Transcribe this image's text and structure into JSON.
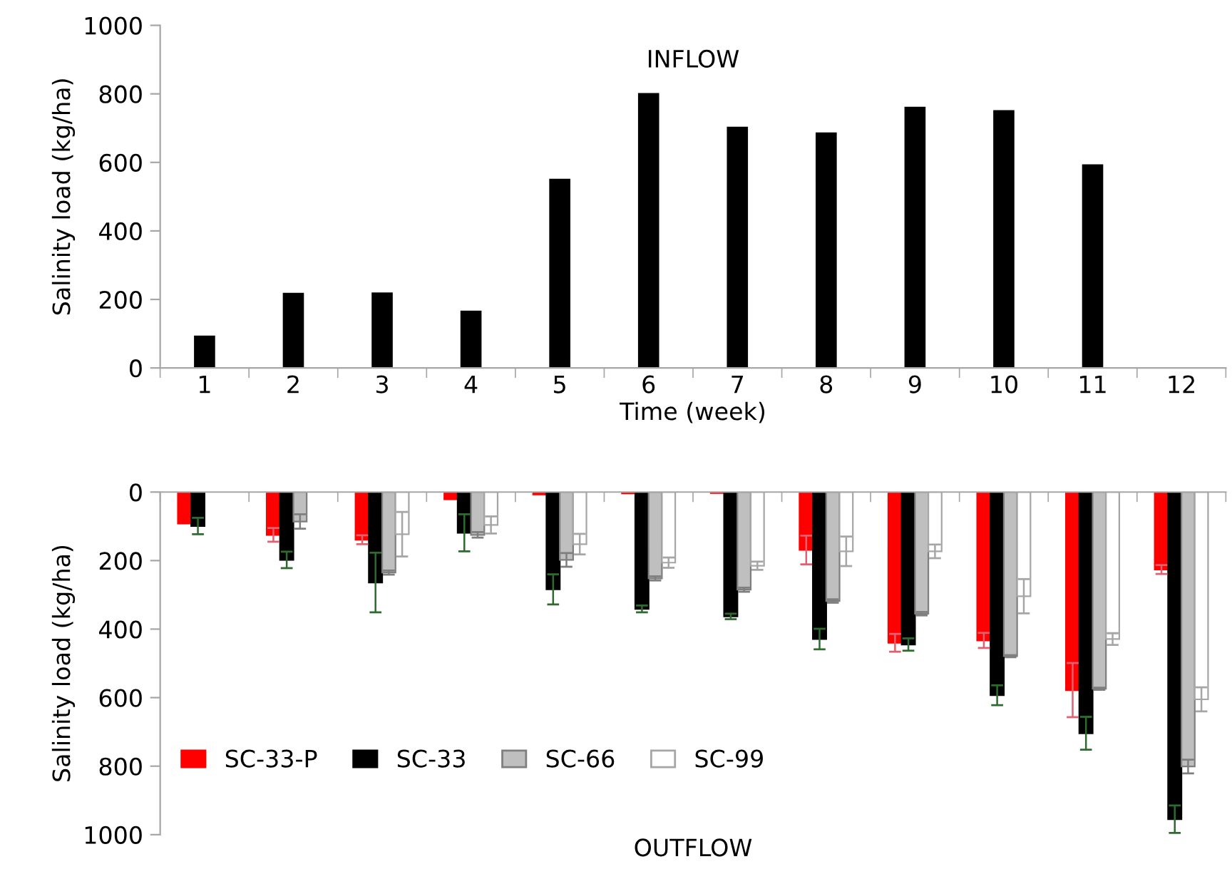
{
  "chart_data": [
    {
      "type": "bar",
      "title": "INFLOW",
      "xlabel": "Time (week)",
      "ylabel": "Salinity load (kg/ha)",
      "categories": [
        "1",
        "2",
        "3",
        "4",
        "5",
        "6",
        "7",
        "8",
        "9",
        "10",
        "11",
        "12"
      ],
      "series": [
        {
          "color": "#000000",
          "values": [
            92,
            217,
            218,
            165,
            550,
            800,
            702,
            685,
            760,
            750,
            592,
            null
          ]
        }
      ],
      "ylim": [
        0,
        1000
      ],
      "yticks": [
        0,
        200,
        400,
        600,
        800,
        1000
      ],
      "grid": false,
      "legend": false
    },
    {
      "type": "bar",
      "title": "OUTFLOW",
      "ylabel": "Salinity load (kg/ha)",
      "categories": [
        null,
        null,
        null,
        null,
        null,
        null,
        null,
        null,
        null,
        null,
        null,
        null
      ],
      "series": [
        {
          "name": "SC-33-P",
          "color": "#ff0000",
          "values": [
            92,
            125,
            139,
            21,
            7,
            4,
            3,
            169,
            440,
            433,
            578,
            226
          ],
          "errors": [
            null,
            20,
            13,
            null,
            null,
            null,
            null,
            42,
            26,
            22,
            79,
            13
          ]
        },
        {
          "name": "SC-33",
          "color": "#000000",
          "values": [
            99,
            198,
            264,
            119,
            284,
            341,
            363,
            429,
            445,
            593,
            704,
            955
          ],
          "errors": [
            24,
            24,
            87,
            54,
            44,
            10,
            8,
            30,
            18,
            29,
            48,
            40
          ]
        },
        {
          "name": "SC-66",
          "color": "#bfbfbf",
          "values": [
            null,
            86,
            235,
            125,
            198,
            252,
            285,
            318,
            355,
            479,
            574,
            801
          ],
          "errors": [
            null,
            21,
            6,
            8,
            20,
            6,
            6,
            5,
            5,
            3,
            3,
            20
          ]
        },
        {
          "name": "SC-99",
          "color": "#ffffff",
          "values": [
            null,
            null,
            123,
            96,
            152,
            206,
            215,
            173,
            173,
            304,
            429,
            605
          ],
          "errors": [
            null,
            null,
            65,
            25,
            30,
            15,
            12,
            43,
            20,
            50,
            17,
            35
          ]
        }
      ],
      "ylim": [
        1000,
        0
      ],
      "yticks": [
        0,
        200,
        400,
        600,
        800,
        1000
      ],
      "tick_labels": "y",
      "grid": false,
      "legend": "bottom left"
    }
  ]
}
